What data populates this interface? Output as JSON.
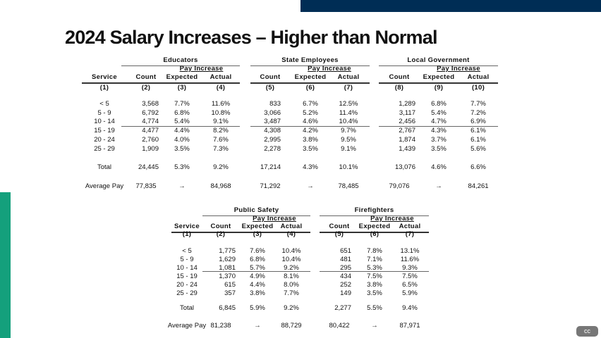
{
  "title": "2024 Salary Increases – Higher than Normal",
  "labels": {
    "service": "Service",
    "count": "Count",
    "expected": "Expected",
    "actual": "Actual",
    "pay_increase": "Pay Increase",
    "arrow": "→"
  },
  "top_table": {
    "groups": [
      "Educators",
      "State Employees",
      "Local Government"
    ],
    "col_numbers": [
      "(1)",
      "(2)",
      "(3)",
      "(4)",
      "(5)",
      "(6)",
      "(7)",
      "(8)",
      "(9)",
      "(10)"
    ],
    "rows": [
      [
        "< 5",
        "3,568",
        "7.7%",
        "11.6%",
        "833",
        "6.7%",
        "12.5%",
        "1,289",
        "6.8%",
        "7.7%"
      ],
      [
        "5 - 9",
        "6,792",
        "6.8%",
        "10.8%",
        "3,066",
        "5.2%",
        "11.4%",
        "3,117",
        "5.4%",
        "7.2%"
      ],
      [
        "10 - 14",
        "4,774",
        "5.4%",
        "9.1%",
        "3,487",
        "4.6%",
        "10.4%",
        "2,456",
        "4.7%",
        "6.9%"
      ],
      [
        "15 - 19",
        "4,477",
        "4.4%",
        "8.2%",
        "4,308",
        "4.2%",
        "9.7%",
        "2,767",
        "4.3%",
        "6.1%"
      ],
      [
        "20 - 24",
        "2,760",
        "4.0%",
        "7.6%",
        "2,995",
        "3.8%",
        "9.5%",
        "1,874",
        "3.7%",
        "6.1%"
      ],
      [
        "25 - 29",
        "1,909",
        "3.5%",
        "7.3%",
        "2,278",
        "3.5%",
        "9.1%",
        "1,439",
        "3.5%",
        "5.6%"
      ]
    ],
    "total": [
      "Total",
      "24,445",
      "5.3%",
      "9.2%",
      "17,214",
      "4.3%",
      "10.1%",
      "13,076",
      "4.6%",
      "6.6%"
    ],
    "average_pay": [
      "Average Pay",
      "77,835",
      "→",
      "84,968",
      "71,292",
      "→",
      "78,485",
      "79,076",
      "→",
      "84,261"
    ]
  },
  "bottom_table": {
    "groups": [
      "Public Safety",
      "Firefighters"
    ],
    "col_numbers": [
      "(1)",
      "(2)",
      "(3)",
      "(4)",
      "(5)",
      "(6)",
      "(7)"
    ],
    "rows": [
      [
        "< 5",
        "1,775",
        "7.6%",
        "10.4%",
        "651",
        "7.8%",
        "13.1%"
      ],
      [
        "5 - 9",
        "1,629",
        "6.8%",
        "10.4%",
        "481",
        "7.1%",
        "11.6%"
      ],
      [
        "10 - 14",
        "1,081",
        "5.7%",
        "9.2%",
        "295",
        "5.3%",
        "9.3%"
      ],
      [
        "15 - 19",
        "1,370",
        "4.9%",
        "8.1%",
        "434",
        "7.5%",
        "7.5%"
      ],
      [
        "20 - 24",
        "615",
        "4.4%",
        "8.0%",
        "252",
        "3.8%",
        "6.5%"
      ],
      [
        "25 - 29",
        "357",
        "3.8%",
        "7.7%",
        "149",
        "3.5%",
        "5.9%"
      ]
    ],
    "total": [
      "Total",
      "6,845",
      "5.9%",
      "9.2%",
      "2,277",
      "5.5%",
      "9.4%"
    ],
    "average_pay": [
      "Average Pay",
      "81,238",
      "→",
      "88,729",
      "80,422",
      "→",
      "87,971"
    ]
  },
  "cc_badge": "cc",
  "colors": {
    "navy": "#002d55",
    "green": "#14a07c"
  }
}
